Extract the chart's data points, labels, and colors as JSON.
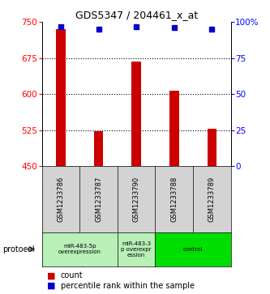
{
  "title": "GDS5347 / 204461_x_at",
  "samples": [
    "GSM1233786",
    "GSM1233787",
    "GSM1233790",
    "GSM1233788",
    "GSM1233789"
  ],
  "counts": [
    735,
    523,
    668,
    607,
    527
  ],
  "percentiles": [
    97,
    95,
    97,
    96,
    95
  ],
  "ylim_left": [
    450,
    750
  ],
  "ylim_right": [
    0,
    100
  ],
  "yticks_left": [
    450,
    525,
    600,
    675,
    750
  ],
  "yticks_right": [
    0,
    25,
    50,
    75,
    100
  ],
  "bar_color": "#cc0000",
  "dot_color": "#0000cc",
  "protocol_groups": [
    {
      "label": "miR-483-5p\noverexpression",
      "sample_indices": [
        0,
        1
      ],
      "color": "#b8f0b8"
    },
    {
      "label": "miR-483-3\np overexpr\nession",
      "sample_indices": [
        2
      ],
      "color": "#b8f0b8"
    },
    {
      "label": "control",
      "sample_indices": [
        3,
        4
      ],
      "color": "#00dd00"
    }
  ],
  "protocol_label": "protocol",
  "legend_count_label": "count",
  "legend_percentile_label": "percentile rank within the sample",
  "label_area_color": "#d3d3d3",
  "bar_width": 0.25
}
